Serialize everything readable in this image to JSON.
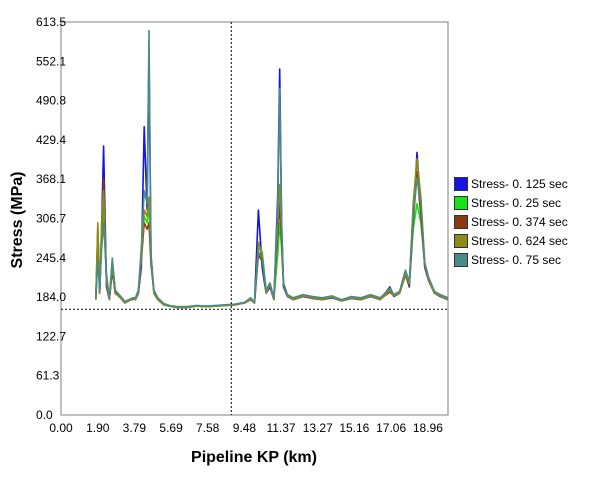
{
  "chart_data": {
    "type": "line",
    "xlabel": "Pipeline KP (km)",
    "ylabel": "Stress (MPa)",
    "xlim": [
      0,
      20
    ],
    "ylim": [
      0,
      613.5
    ],
    "x_ticks": [
      "0.00",
      "1.90",
      "3.79",
      "5.69",
      "7.58",
      "9.48",
      "11.37",
      "13.27",
      "15.16",
      "17.06",
      "18.96"
    ],
    "x_tick_values": [
      0,
      1.9,
      3.79,
      5.69,
      7.58,
      9.48,
      11.37,
      13.27,
      15.16,
      17.06,
      18.96
    ],
    "y_ticks": [
      "0.0",
      "61.3",
      "122.7",
      "184.0",
      "245.4",
      "306.7",
      "368.1",
      "429.4",
      "490.8",
      "552.1",
      "613.5"
    ],
    "y_tick_values": [
      0,
      61.3,
      122.7,
      184.0,
      245.4,
      306.7,
      368.1,
      429.4,
      490.8,
      552.1,
      613.5
    ],
    "reference_lines": {
      "horizontal_y": 165,
      "vertical_x": 8.8
    },
    "grid": false,
    "legend_position": "right",
    "series": [
      {
        "name": "Stress- 0. 125 sec",
        "color": "#1414e6",
        "x": [
          1.8,
          1.9,
          2.0,
          2.1,
          2.2,
          2.35,
          2.5,
          2.65,
          2.8,
          3.0,
          3.15,
          3.3,
          3.5,
          3.7,
          3.85,
          4.0,
          4.15,
          4.3,
          4.45,
          4.55,
          4.65,
          4.8,
          5.0,
          5.3,
          5.6,
          6.0,
          6.5,
          7.0,
          7.5,
          8.0,
          8.5,
          9.0,
          9.5,
          9.8,
          10.0,
          10.2,
          10.4,
          10.6,
          10.8,
          11.0,
          11.2,
          11.3,
          11.4,
          11.5,
          11.7,
          12.0,
          12.5,
          13.0,
          13.5,
          14.0,
          14.5,
          15.0,
          15.5,
          16.0,
          16.5,
          17.0,
          17.2,
          17.5,
          17.8,
          18.0,
          18.2,
          18.4,
          18.6,
          18.8,
          19.0,
          19.3,
          19.6,
          20.0
        ],
        "values": [
          180,
          260,
          190,
          290,
          420,
          200,
          180,
          230,
          190,
          185,
          180,
          175,
          178,
          182,
          180,
          190,
          230,
          450,
          320,
          560,
          250,
          190,
          180,
          172,
          170,
          168,
          168,
          170,
          169,
          170,
          171,
          172,
          175,
          180,
          175,
          320,
          230,
          190,
          200,
          180,
          340,
          540,
          300,
          200,
          185,
          180,
          185,
          182,
          180,
          183,
          178,
          182,
          180,
          185,
          180,
          200,
          185,
          190,
          220,
          200,
          300,
          410,
          320,
          230,
          210,
          190,
          185,
          180
        ]
      },
      {
        "name": "Stress- 0. 25 sec",
        "color": "#14e614",
        "x": [
          1.8,
          1.9,
          2.0,
          2.1,
          2.2,
          2.35,
          2.5,
          2.65,
          2.8,
          3.0,
          3.15,
          3.3,
          3.5,
          3.7,
          3.85,
          4.0,
          4.15,
          4.3,
          4.45,
          4.55,
          4.65,
          4.8,
          5.0,
          5.3,
          5.6,
          6.0,
          6.5,
          7.0,
          7.5,
          8.0,
          8.5,
          9.0,
          9.5,
          9.8,
          10.0,
          10.2,
          10.4,
          10.6,
          10.8,
          11.0,
          11.2,
          11.3,
          11.4,
          11.5,
          11.7,
          12.0,
          12.5,
          13.0,
          13.5,
          14.0,
          14.5,
          15.0,
          15.5,
          16.0,
          16.5,
          17.0,
          17.2,
          17.5,
          17.8,
          18.0,
          18.2,
          18.4,
          18.6,
          18.8,
          19.0,
          19.3,
          19.6,
          20.0
        ],
        "values": [
          182,
          250,
          195,
          270,
          330,
          205,
          182,
          240,
          195,
          188,
          182,
          176,
          180,
          180,
          182,
          195,
          250,
          310,
          300,
          330,
          240,
          195,
          182,
          174,
          171,
          169,
          169,
          171,
          170,
          171,
          172,
          173,
          176,
          182,
          176,
          260,
          255,
          195,
          205,
          182,
          250,
          300,
          260,
          205,
          188,
          182,
          187,
          184,
          182,
          185,
          180,
          184,
          182,
          187,
          182,
          195,
          188,
          192,
          225,
          205,
          290,
          330,
          300,
          235,
          212,
          192,
          187,
          182
        ]
      },
      {
        "name": "Stress- 0. 374 sec",
        "color": "#8b3a0f",
        "x": [
          1.8,
          1.9,
          2.0,
          2.1,
          2.2,
          2.35,
          2.5,
          2.65,
          2.8,
          3.0,
          3.15,
          3.3,
          3.5,
          3.7,
          3.85,
          4.0,
          4.15,
          4.3,
          4.45,
          4.55,
          4.65,
          4.8,
          5.0,
          5.3,
          5.6,
          6.0,
          6.5,
          7.0,
          7.5,
          8.0,
          8.5,
          9.0,
          9.5,
          9.8,
          10.0,
          10.2,
          10.4,
          10.6,
          10.8,
          11.0,
          11.2,
          11.3,
          11.4,
          11.5,
          11.7,
          12.0,
          12.5,
          13.0,
          13.5,
          14.0,
          14.5,
          15.0,
          15.5,
          16.0,
          16.5,
          17.0,
          17.2,
          17.5,
          17.8,
          18.0,
          18.2,
          18.4,
          18.6,
          18.8,
          19.0,
          19.3,
          19.6,
          20.0
        ],
        "values": [
          181,
          290,
          192,
          280,
          370,
          202,
          181,
          225,
          192,
          186,
          181,
          175,
          179,
          181,
          181,
          192,
          240,
          300,
          290,
          300,
          235,
          192,
          181,
          173,
          170,
          168,
          168,
          170,
          169,
          170,
          171,
          172,
          175,
          181,
          175,
          250,
          240,
          192,
          202,
          181,
          280,
          330,
          270,
          202,
          186,
          181,
          186,
          183,
          181,
          184,
          179,
          183,
          181,
          186,
          181,
          192,
          186,
          190,
          218,
          202,
          300,
          380,
          310,
          232,
          210,
          190,
          186,
          181
        ]
      },
      {
        "name": "Stress- 0. 624 sec",
        "color": "#8c8c14",
        "x": [
          1.8,
          1.9,
          2.0,
          2.1,
          2.2,
          2.35,
          2.5,
          2.65,
          2.8,
          3.0,
          3.15,
          3.3,
          3.5,
          3.7,
          3.85,
          4.0,
          4.15,
          4.3,
          4.45,
          4.55,
          4.65,
          4.8,
          5.0,
          5.3,
          5.6,
          6.0,
          6.5,
          7.0,
          7.5,
          8.0,
          8.5,
          9.0,
          9.5,
          9.8,
          10.0,
          10.2,
          10.4,
          10.6,
          10.8,
          11.0,
          11.2,
          11.3,
          11.4,
          11.5,
          11.7,
          12.0,
          12.5,
          13.0,
          13.5,
          14.0,
          14.5,
          15.0,
          15.5,
          16.0,
          16.5,
          17.0,
          17.2,
          17.5,
          17.8,
          18.0,
          18.2,
          18.4,
          18.6,
          18.8,
          19.0,
          19.3,
          19.6,
          20.0
        ],
        "values": [
          180,
          300,
          190,
          300,
          350,
          210,
          180,
          235,
          190,
          185,
          180,
          175,
          178,
          182,
          180,
          192,
          245,
          320,
          310,
          340,
          245,
          190,
          180,
          172,
          170,
          168,
          168,
          170,
          169,
          170,
          171,
          172,
          175,
          180,
          175,
          270,
          250,
          190,
          205,
          180,
          300,
          360,
          290,
          205,
          186,
          180,
          186,
          183,
          180,
          184,
          178,
          183,
          180,
          186,
          180,
          195,
          186,
          190,
          220,
          205,
          330,
          400,
          340,
          235,
          212,
          190,
          186,
          180
        ]
      },
      {
        "name": "Stress- 0. 75 sec",
        "color": "#4a8a8a",
        "x": [
          1.8,
          1.9,
          2.0,
          2.1,
          2.2,
          2.35,
          2.5,
          2.65,
          2.8,
          3.0,
          3.15,
          3.3,
          3.5,
          3.7,
          3.85,
          4.0,
          4.15,
          4.3,
          4.45,
          4.55,
          4.65,
          4.8,
          5.0,
          5.3,
          5.6,
          6.0,
          6.5,
          7.0,
          7.5,
          8.0,
          8.5,
          9.0,
          9.5,
          9.8,
          10.0,
          10.2,
          10.4,
          10.6,
          10.8,
          11.0,
          11.2,
          11.3,
          11.4,
          11.5,
          11.7,
          12.0,
          12.5,
          13.0,
          13.5,
          14.0,
          14.5,
          15.0,
          15.5,
          16.0,
          16.5,
          17.0,
          17.2,
          17.5,
          17.8,
          18.0,
          18.2,
          18.4,
          18.6,
          18.8,
          19.0,
          19.3,
          19.6,
          20.0
        ],
        "values": [
          183,
          240,
          195,
          260,
          300,
          220,
          183,
          245,
          195,
          188,
          183,
          177,
          180,
          183,
          183,
          195,
          260,
          350,
          330,
          600,
          250,
          195,
          183,
          174,
          171,
          169,
          169,
          171,
          170,
          171,
          172,
          173,
          176,
          183,
          176,
          255,
          245,
          195,
          206,
          183,
          320,
          510,
          300,
          206,
          188,
          183,
          188,
          185,
          183,
          186,
          180,
          185,
          183,
          188,
          183,
          198,
          188,
          193,
          226,
          208,
          310,
          370,
          330,
          238,
          215,
          193,
          188,
          183
        ]
      }
    ]
  }
}
